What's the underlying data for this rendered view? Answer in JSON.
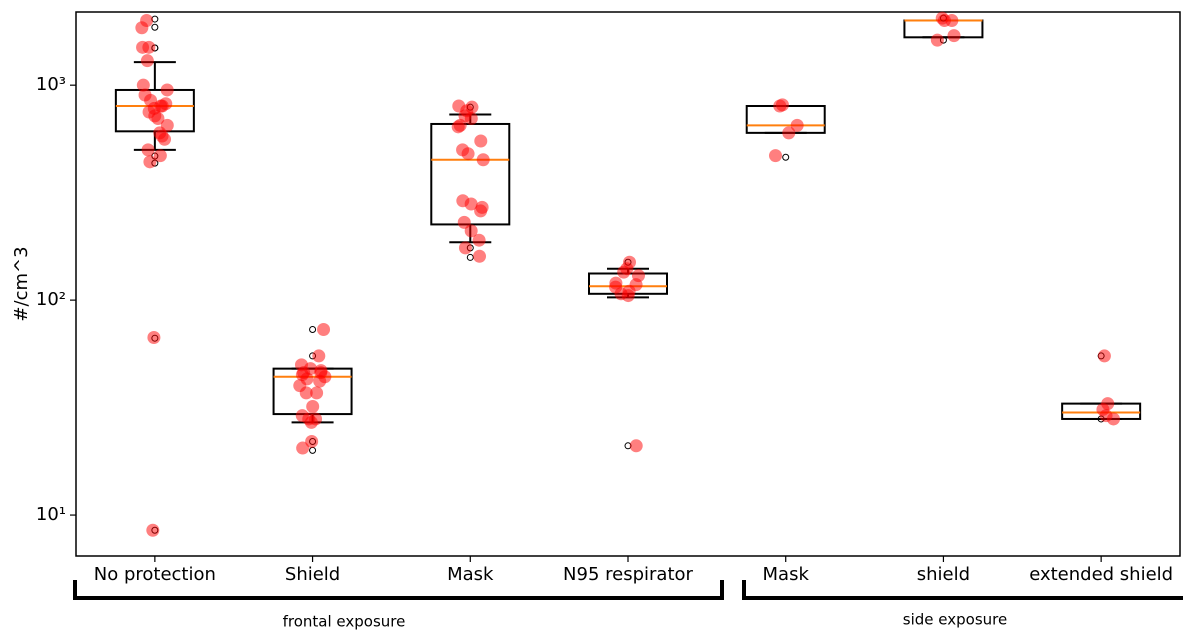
{
  "chart_data": {
    "type": "box",
    "y_label": "#/cm^3",
    "log_scale": true,
    "ylim": [
      6.45,
      2190
    ],
    "yticks": [
      {
        "value": 10,
        "label": "10¹"
      },
      {
        "value": 100,
        "label": "10²"
      },
      {
        "value": 1000,
        "label": "10³"
      }
    ],
    "categories": [
      "No protection",
      "Shield",
      "Mask",
      "N95 respirator",
      "Mask",
      "shield",
      "extended shield"
    ],
    "groups": [
      "frontal exposure",
      "side exposure"
    ],
    "box_color": "#000000",
    "median_color": "#ff7f0e",
    "point_color": "#ff0000",
    "boxes": [
      {
        "q1": 610,
        "median": 800,
        "q3": 950,
        "whislo": 500,
        "whishi": 1280,
        "fliers": [
          2030,
          1860,
          1490,
          1490,
          468,
          434,
          66.5,
          8.5
        ]
      },
      {
        "q1": 29.5,
        "median": 44,
        "q3": 48,
        "whislo": 27,
        "whishi": 48,
        "fliers": [
          73,
          55,
          22,
          20
        ]
      },
      {
        "q1": 225,
        "median": 450,
        "q3": 660,
        "whislo": 186,
        "whishi": 730,
        "fliers": [
          790,
          175,
          158
        ]
      },
      {
        "q1": 107,
        "median": 116,
        "q3": 133,
        "whislo": 103,
        "whishi": 140,
        "fliers": [
          150,
          21
        ]
      },
      {
        "q1": 600,
        "median": 650,
        "q3": 800,
        "whislo": 600,
        "whishi": 800,
        "fliers": [
          462
        ]
      },
      {
        "q1": 1670,
        "median": 2000,
        "q3": 2000,
        "whislo": 1670,
        "whishi": 2000,
        "fliers": [
          2050,
          1620
        ]
      },
      {
        "q1": 28,
        "median": 30,
        "q3": 33,
        "whislo": 28,
        "whishi": 33,
        "fliers": [
          55,
          28
        ]
      }
    ],
    "points": [
      [
        1850,
        2000,
        1500,
        1500,
        1300,
        1000,
        950,
        900,
        850,
        820,
        800,
        800,
        780,
        750,
        720,
        700,
        650,
        600,
        580,
        560,
        500,
        470,
        440,
        67,
        8.5
      ],
      [
        73,
        55,
        50,
        48,
        47,
        46,
        46,
        45,
        44,
        43,
        42,
        40,
        37,
        37,
        32,
        29,
        28,
        28,
        27,
        22,
        20.5
      ],
      [
        800,
        790,
        760,
        720,
        700,
        650,
        640,
        550,
        500,
        480,
        450,
        290,
        280,
        270,
        260,
        230,
        210,
        190,
        175,
        160
      ],
      [
        150,
        140,
        135,
        130,
        120,
        118,
        115,
        110,
        107,
        105,
        21
      ],
      [
        810,
        800,
        650,
        600,
        470
      ],
      [
        2050,
        2000,
        2000,
        1700,
        1620
      ],
      [
        55,
        33,
        31,
        29,
        28
      ]
    ]
  }
}
